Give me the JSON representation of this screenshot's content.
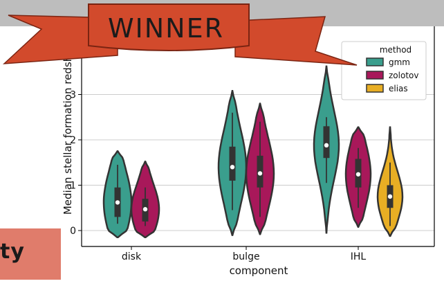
{
  "banner": {
    "text": "WINNER",
    "color": "#d24a2c"
  },
  "badge": {
    "text": "ty",
    "color": "#e07c6b"
  },
  "chart_data": {
    "type": "violin",
    "xlabel": "component",
    "ylabel": "Median stellar formation redsh",
    "categories": [
      "disk",
      "bulge",
      "IHL"
    ],
    "ylim": [
      -0.2,
      4.0
    ],
    "yticks": [
      0,
      1,
      2,
      3
    ],
    "grid": "horizontal",
    "legend": {
      "title": "method",
      "placement": "top-right"
    },
    "series": [
      {
        "name": "gmm",
        "color": "#3a9e8d",
        "values": [
          {
            "category": "disk",
            "min": -0.15,
            "q1": 0.3,
            "median": 0.62,
            "q3": 0.95,
            "max": 1.75,
            "whisker_low": 0.15,
            "whisker_high": 1.45
          },
          {
            "category": "bulge",
            "min": -0.1,
            "q1": 1.1,
            "median": 1.4,
            "q3": 1.85,
            "max": 3.08,
            "whisker_low": 0.45,
            "whisker_high": 2.6
          },
          {
            "category": "IHL",
            "min": -0.05,
            "q1": 1.6,
            "median": 1.88,
            "q3": 2.3,
            "max": 3.62,
            "whisker_low": 1.05,
            "whisker_high": 2.5
          }
        ]
      },
      {
        "name": "zolotov",
        "color": "#a8185a",
        "values": [
          {
            "category": "disk",
            "min": -0.15,
            "q1": 0.2,
            "median": 0.47,
            "q3": 0.7,
            "max": 1.52,
            "whisker_low": 0.1,
            "whisker_high": 0.95
          },
          {
            "category": "bulge",
            "min": -0.08,
            "q1": 0.95,
            "median": 1.26,
            "q3": 1.65,
            "max": 2.8,
            "whisker_low": 0.3,
            "whisker_high": 2.4
          },
          {
            "category": "IHL",
            "min": 0.08,
            "q1": 0.95,
            "median": 1.24,
            "q3": 1.58,
            "max": 2.28,
            "whisker_low": 0.5,
            "whisker_high": 1.82
          }
        ]
      },
      {
        "name": "elias",
        "color": "#e8ae24",
        "values": [
          {
            "category": "IHL",
            "min": -0.12,
            "q1": 0.5,
            "median": 0.75,
            "q3": 1.0,
            "max": 2.28,
            "whisker_low": 0.1,
            "whisker_high": 1.5
          }
        ]
      }
    ]
  }
}
